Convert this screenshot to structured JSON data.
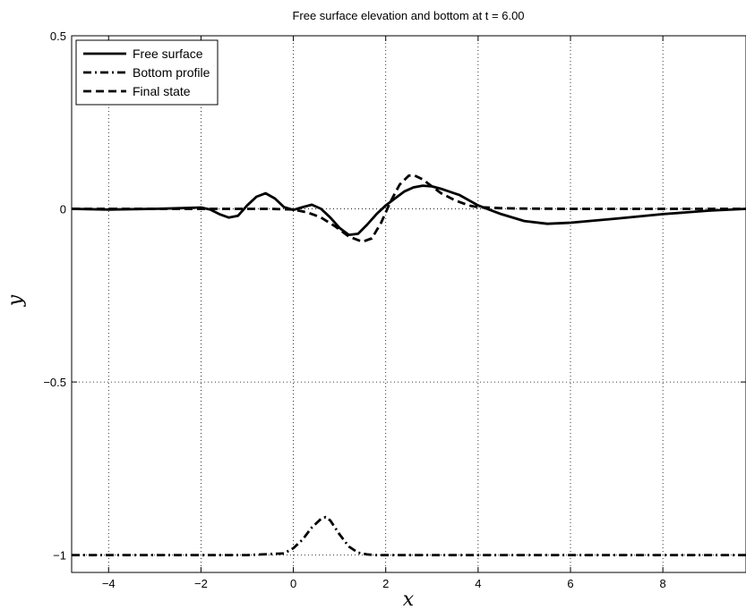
{
  "chart_data": {
    "type": "line",
    "title": "Free surface elevation and bottom at t = 6.00",
    "xlabel": "x",
    "ylabel": "y",
    "xlim": [
      -4.8,
      9.8
    ],
    "ylim": [
      -1.05,
      0.5
    ],
    "xticks": [
      -4,
      -2,
      0,
      2,
      4,
      6,
      8
    ],
    "yticks": [
      0.5,
      0,
      -0.5,
      -1
    ],
    "xtick_labels": [
      "−4",
      "−2",
      "0",
      "2",
      "4",
      "6",
      "8"
    ],
    "ytick_labels": [
      "0.5",
      "0",
      "−0.5",
      "−1"
    ],
    "grid": true,
    "legend_position": "top-left",
    "series": [
      {
        "name": "Free surface",
        "style": "solid",
        "x": [
          -4.8,
          -4.0,
          -3.0,
          -2.5,
          -2.0,
          -1.8,
          -1.6,
          -1.4,
          -1.2,
          -1.0,
          -0.8,
          -0.6,
          -0.4,
          -0.2,
          0.0,
          0.2,
          0.4,
          0.6,
          0.8,
          1.0,
          1.2,
          1.4,
          1.6,
          1.8,
          2.0,
          2.2,
          2.4,
          2.6,
          2.8,
          3.0,
          3.2,
          3.6,
          4.0,
          4.5,
          5.0,
          5.5,
          6.0,
          7.0,
          8.0,
          9.0,
          9.8
        ],
        "y": [
          0.0,
          -0.002,
          0.0,
          0.002,
          0.004,
          -0.002,
          -0.015,
          -0.025,
          -0.02,
          0.01,
          0.035,
          0.045,
          0.03,
          0.005,
          -0.003,
          0.005,
          0.012,
          0.0,
          -0.025,
          -0.055,
          -0.075,
          -0.072,
          -0.045,
          -0.015,
          0.01,
          0.03,
          0.05,
          0.062,
          0.067,
          0.065,
          0.058,
          0.04,
          0.01,
          -0.015,
          -0.035,
          -0.043,
          -0.04,
          -0.028,
          -0.015,
          -0.005,
          0.0
        ]
      },
      {
        "name": "Bottom profile",
        "style": "dash-dot",
        "x": [
          -4.8,
          -1.0,
          -0.2,
          0.0,
          0.2,
          0.4,
          0.6,
          0.7,
          0.8,
          1.0,
          1.2,
          1.4,
          1.6,
          1.8,
          2.0,
          4.0,
          6.0,
          9.8
        ],
        "y": [
          -1.0,
          -1.0,
          -0.995,
          -0.98,
          -0.955,
          -0.92,
          -0.895,
          -0.89,
          -0.9,
          -0.94,
          -0.975,
          -0.993,
          -0.998,
          -1.0,
          -1.0,
          -1.0,
          -1.0,
          -1.0
        ]
      },
      {
        "name": "Final state",
        "style": "dashed",
        "x": [
          -4.8,
          -2.0,
          -0.5,
          0.0,
          0.3,
          0.6,
          0.9,
          1.2,
          1.5,
          1.7,
          1.9,
          2.1,
          2.3,
          2.5,
          2.6,
          2.8,
          3.0,
          3.2,
          3.5,
          3.8,
          4.0,
          4.5,
          5.0,
          6.0,
          9.8
        ],
        "y": [
          0.0,
          0.0,
          0.0,
          -0.002,
          -0.01,
          -0.025,
          -0.05,
          -0.08,
          -0.095,
          -0.085,
          -0.04,
          0.02,
          0.07,
          0.096,
          0.098,
          0.085,
          0.065,
          0.045,
          0.025,
          0.01,
          0.005,
          0.002,
          0.001,
          0.0,
          0.0
        ]
      }
    ]
  }
}
